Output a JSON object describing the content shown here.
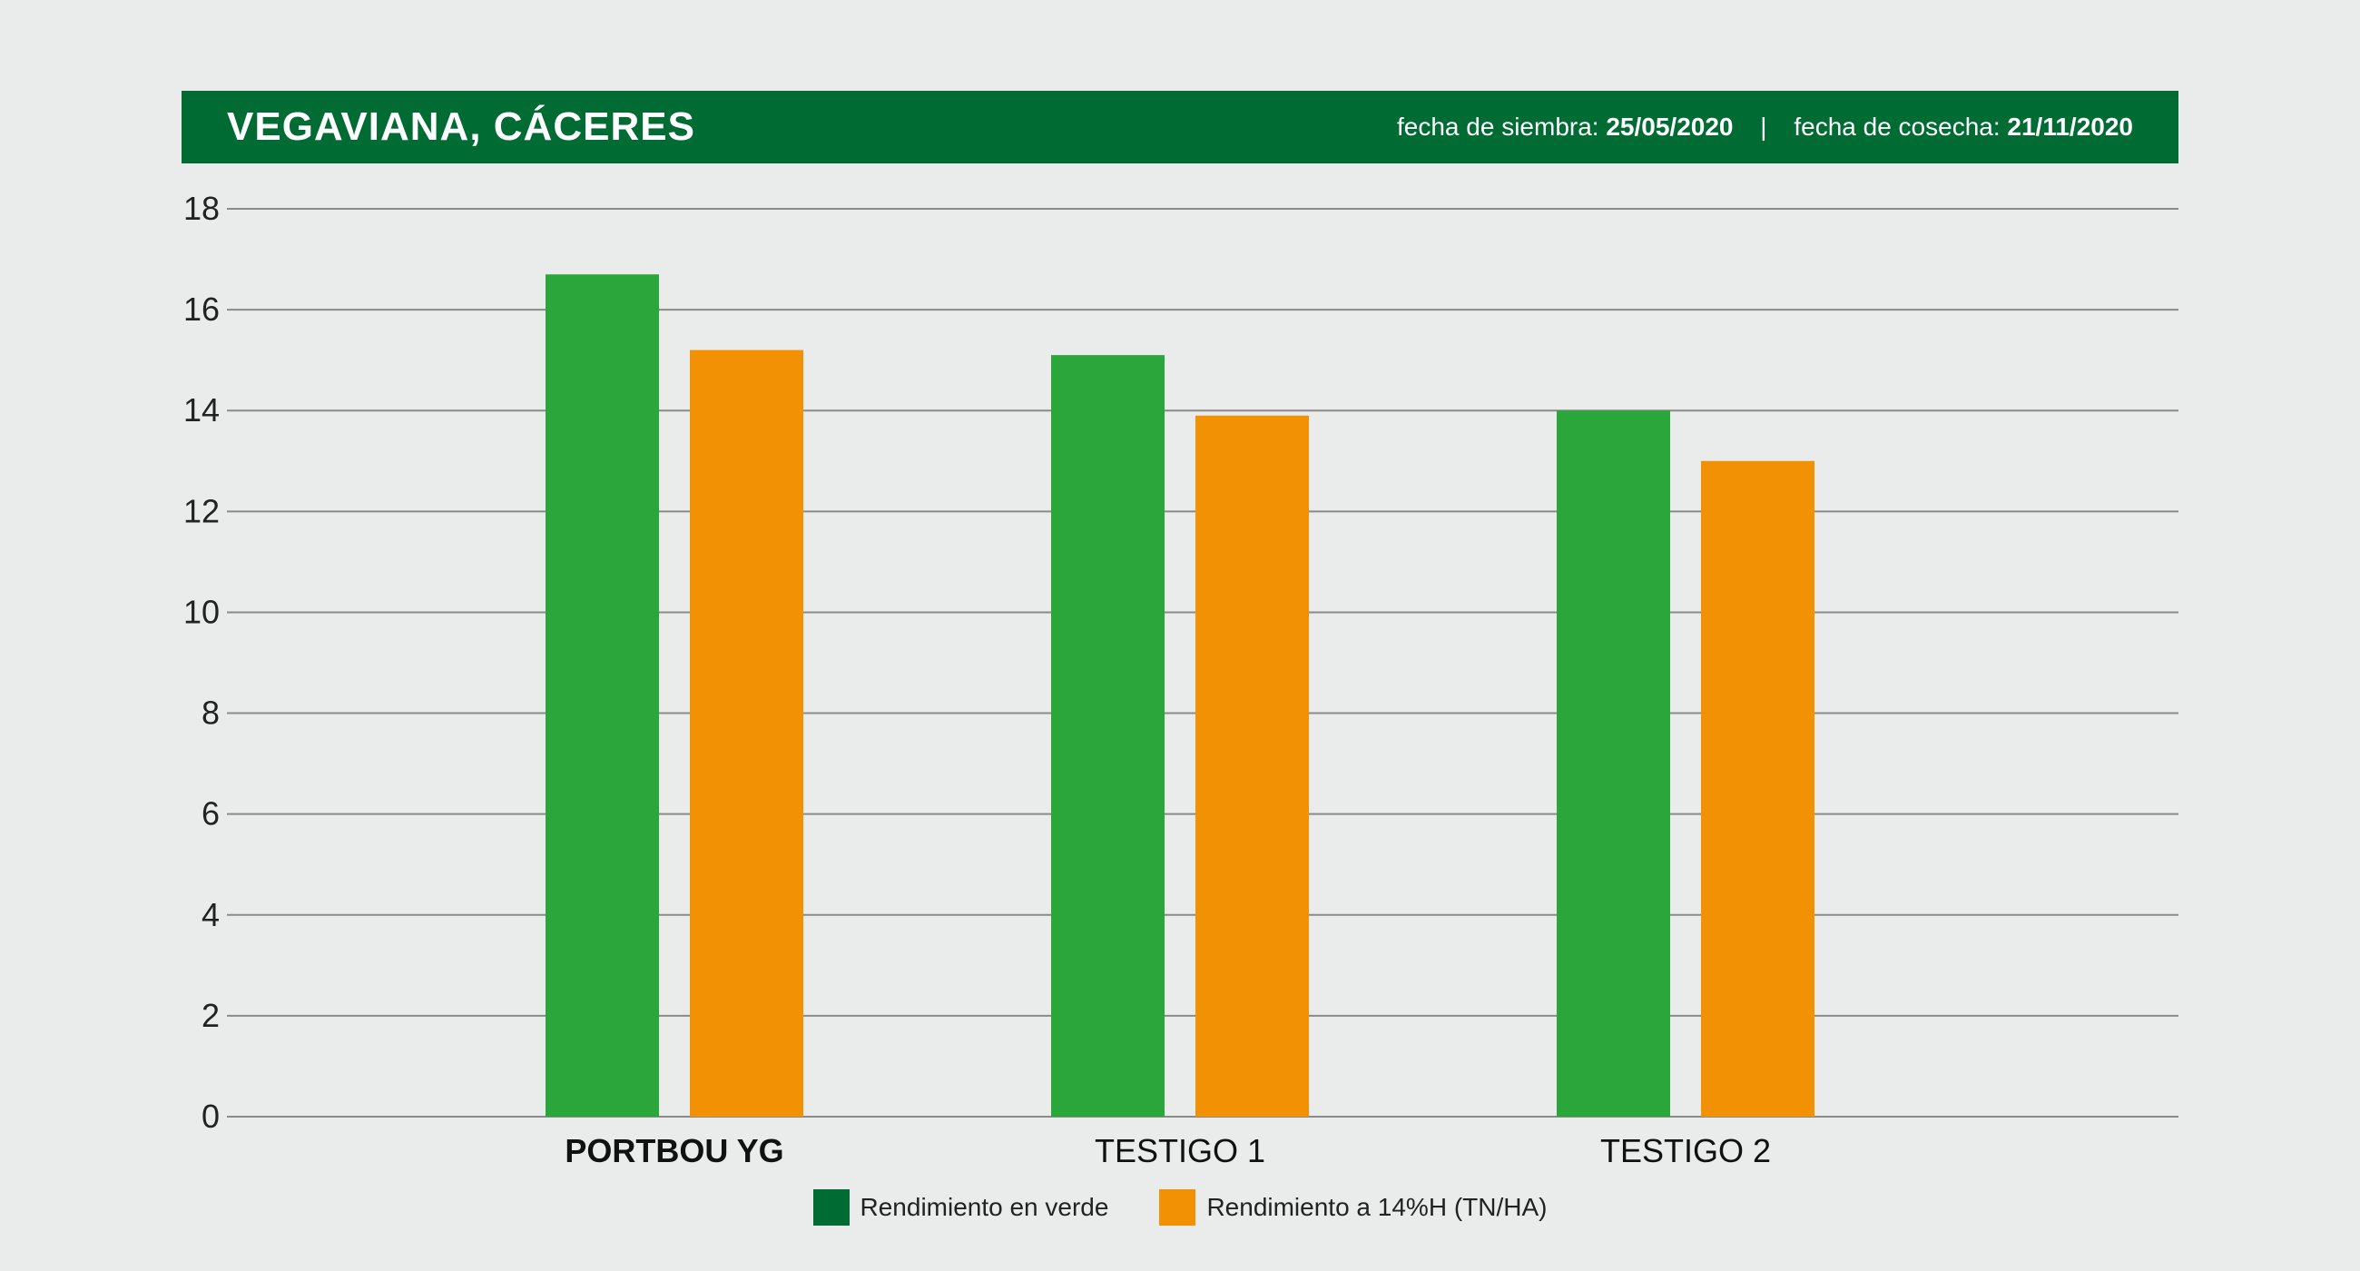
{
  "header": {
    "title": "VEGAVIANA, CÁCERES",
    "sowing_label": "fecha de siembra:",
    "sowing_date": "25/05/2020",
    "separator": "|",
    "harvest_label": "fecha de cosecha:",
    "harvest_date": "21/11/2020"
  },
  "colors": {
    "header_bg": "#006b32",
    "legend_verde": "#006b32",
    "bar_verde": "#2aa63a",
    "bar_14h": "#f29103"
  },
  "chart_data": {
    "type": "bar",
    "categories": [
      "PORTBOU YG",
      "TESTIGO 1",
      "TESTIGO 2"
    ],
    "category_bold": [
      true,
      false,
      false
    ],
    "series": [
      {
        "name": "Rendimiento en verde",
        "values": [
          16.7,
          15.1,
          14.0
        ]
      },
      {
        "name": "Rendimiento a 14%H (TN/HA)",
        "values": [
          15.2,
          13.9,
          13.0
        ]
      }
    ],
    "ylim": [
      0,
      18
    ],
    "yticks": [
      0,
      2,
      4,
      6,
      8,
      10,
      12,
      14,
      16,
      18
    ],
    "grid": true,
    "legend_position": "bottom-center"
  }
}
